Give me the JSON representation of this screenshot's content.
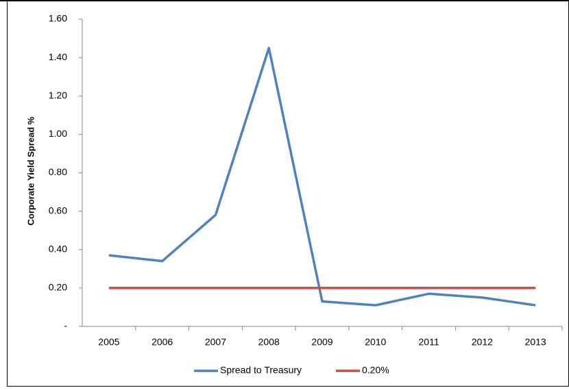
{
  "chart_data": {
    "type": "line",
    "y_label": "Corporate Yield Spread %",
    "categories": [
      "2005",
      "2006",
      "2007",
      "2008",
      "2009",
      "2010",
      "2011",
      "2012",
      "2013"
    ],
    "series": [
      {
        "name": "Spread to Treasury",
        "color": "#4f81bd",
        "values": [
          0.37,
          0.34,
          0.58,
          1.45,
          0.13,
          0.11,
          0.17,
          0.15,
          0.11
        ]
      },
      {
        "name": "0.20%",
        "color": "#c0504d",
        "values": [
          0.2,
          0.2,
          0.2,
          0.2,
          0.2,
          0.2,
          0.2,
          0.2,
          0.2
        ]
      }
    ],
    "ylim": [
      0,
      1.6
    ],
    "yticks": [
      {
        "value": 0,
        "label": "-"
      },
      {
        "value": 0.2,
        "label": "0.20"
      },
      {
        "value": 0.4,
        "label": "0.40"
      },
      {
        "value": 0.6,
        "label": "0.60"
      },
      {
        "value": 0.8,
        "label": "0.80"
      },
      {
        "value": 1.0,
        "label": "1.00"
      },
      {
        "value": 1.2,
        "label": "1.20"
      },
      {
        "value": 1.4,
        "label": "1.40"
      },
      {
        "value": 1.6,
        "label": "1.60"
      }
    ],
    "grid": false,
    "legend": "bottom"
  }
}
